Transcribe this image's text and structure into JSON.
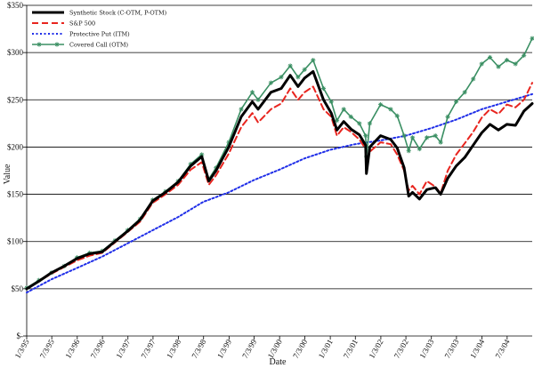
{
  "chart_data": {
    "type": "line",
    "title": "",
    "xlabel": "Date",
    "ylabel": "Value",
    "ylim": [
      0,
      350
    ],
    "y_ticks": [
      0,
      50,
      100,
      150,
      200,
      250,
      300,
      350
    ],
    "y_tick_labels": [
      "$-",
      "$50",
      "$100",
      "$150",
      "$200",
      "$250",
      "$300",
      "$350"
    ],
    "x_range": [
      "1995-01-03",
      "2004-12-31"
    ],
    "x_tick_labels": [
      "1/3/95",
      "7/3/95",
      "1/3/96",
      "7/3/96",
      "1/3/97",
      "7/3/97",
      "1/3/98",
      "7/3/98",
      "1/3/99",
      "7/3/99",
      "1/3/00",
      "7/3/00",
      "1/3/01",
      "7/3/01",
      "1/3/02",
      "7/3/02",
      "1/3/03",
      "7/3/03",
      "1/3/04",
      "7/3/04"
    ],
    "x_tick_dates": [
      "1995-01-03",
      "1995-07-03",
      "1996-01-03",
      "1996-07-03",
      "1997-01-03",
      "1997-07-03",
      "1998-01-03",
      "1998-07-03",
      "1999-01-03",
      "1999-07-03",
      "2000-01-03",
      "2000-07-03",
      "2001-01-03",
      "2001-07-03",
      "2002-01-03",
      "2002-07-03",
      "2003-01-03",
      "2003-07-03",
      "2004-01-03",
      "2004-07-03"
    ],
    "grid": "horizontal",
    "legend_placement": "top-left",
    "series": [
      {
        "name": "Synthetic Stock (C-OTM, P-OTM)",
        "color": "#000000",
        "style": "solid-thick",
        "points": [
          [
            "1995-01-03",
            50
          ],
          [
            "1995-04-01",
            58
          ],
          [
            "1995-07-01",
            67
          ],
          [
            "1995-10-01",
            74
          ],
          [
            "1996-01-01",
            82
          ],
          [
            "1996-04-01",
            87
          ],
          [
            "1996-07-01",
            89
          ],
          [
            "1996-10-01",
            100
          ],
          [
            "1997-01-01",
            111
          ],
          [
            "1997-04-01",
            123
          ],
          [
            "1997-07-01",
            143
          ],
          [
            "1997-10-01",
            152
          ],
          [
            "1998-01-01",
            163
          ],
          [
            "1998-04-01",
            180
          ],
          [
            "1998-06-20",
            190
          ],
          [
            "1998-08-10",
            164
          ],
          [
            "1998-10-01",
            175
          ],
          [
            "1999-01-01",
            200
          ],
          [
            "1999-04-01",
            232
          ],
          [
            "1999-06-20",
            248
          ],
          [
            "1999-08-01",
            240
          ],
          [
            "1999-11-01",
            258
          ],
          [
            "2000-01-15",
            262
          ],
          [
            "2000-03-20",
            276
          ],
          [
            "2000-05-15",
            264
          ],
          [
            "2000-07-01",
            273
          ],
          [
            "2000-09-01",
            280
          ],
          [
            "2000-11-15",
            250
          ],
          [
            "2001-01-10",
            236
          ],
          [
            "2001-02-20",
            218
          ],
          [
            "2001-04-10",
            227
          ],
          [
            "2001-06-01",
            219
          ],
          [
            "2001-08-01",
            213
          ],
          [
            "2001-09-15",
            202
          ],
          [
            "2001-09-21",
            172
          ],
          [
            "2001-10-15",
            200
          ],
          [
            "2002-01-01",
            212
          ],
          [
            "2002-03-15",
            208
          ],
          [
            "2002-05-01",
            199
          ],
          [
            "2002-06-20",
            178
          ],
          [
            "2002-07-23",
            148
          ],
          [
            "2002-08-20",
            152
          ],
          [
            "2002-10-09",
            145
          ],
          [
            "2002-12-01",
            155
          ],
          [
            "2003-02-01",
            157
          ],
          [
            "2003-03-11",
            150
          ],
          [
            "2003-05-01",
            167
          ],
          [
            "2003-07-01",
            180
          ],
          [
            "2003-09-01",
            189
          ],
          [
            "2003-11-01",
            202
          ],
          [
            "2004-01-01",
            215
          ],
          [
            "2004-03-01",
            224
          ],
          [
            "2004-05-01",
            218
          ],
          [
            "2004-07-01",
            224
          ],
          [
            "2004-09-01",
            223
          ],
          [
            "2004-11-01",
            238
          ],
          [
            "2004-12-31",
            246
          ]
        ]
      },
      {
        "name": "S&P 500",
        "color": "#e8251f",
        "style": "dashed",
        "points": [
          [
            "1995-01-03",
            50
          ],
          [
            "1995-04-01",
            58
          ],
          [
            "1995-07-01",
            66
          ],
          [
            "1995-10-01",
            73
          ],
          [
            "1996-01-01",
            80
          ],
          [
            "1996-04-01",
            85
          ],
          [
            "1996-07-01",
            88
          ],
          [
            "1996-10-01",
            99
          ],
          [
            "1997-01-01",
            110
          ],
          [
            "1997-04-01",
            121
          ],
          [
            "1997-07-01",
            141
          ],
          [
            "1997-10-01",
            150
          ],
          [
            "1998-01-01",
            160
          ],
          [
            "1998-04-01",
            176
          ],
          [
            "1998-06-20",
            184
          ],
          [
            "1998-08-10",
            160
          ],
          [
            "1998-10-01",
            170
          ],
          [
            "1999-01-01",
            193
          ],
          [
            "1999-04-01",
            221
          ],
          [
            "1999-06-20",
            236
          ],
          [
            "1999-08-01",
            226
          ],
          [
            "1999-11-01",
            240
          ],
          [
            "2000-01-15",
            246
          ],
          [
            "2000-03-20",
            262
          ],
          [
            "2000-05-15",
            250
          ],
          [
            "2000-07-01",
            258
          ],
          [
            "2000-09-01",
            264
          ],
          [
            "2000-11-15",
            240
          ],
          [
            "2001-01-10",
            232
          ],
          [
            "2001-02-20",
            212
          ],
          [
            "2001-04-10",
            221
          ],
          [
            "2001-06-01",
            216
          ],
          [
            "2001-08-01",
            208
          ],
          [
            "2001-09-15",
            198
          ],
          [
            "2001-09-21",
            182
          ],
          [
            "2001-10-15",
            195
          ],
          [
            "2002-01-01",
            205
          ],
          [
            "2002-03-15",
            203
          ],
          [
            "2002-05-01",
            192
          ],
          [
            "2002-06-20",
            175
          ],
          [
            "2002-07-23",
            154
          ],
          [
            "2002-08-20",
            159
          ],
          [
            "2002-10-09",
            150
          ],
          [
            "2002-12-01",
            164
          ],
          [
            "2003-02-01",
            158
          ],
          [
            "2003-03-11",
            151
          ],
          [
            "2003-05-01",
            175
          ],
          [
            "2003-07-01",
            192
          ],
          [
            "2003-09-01",
            204
          ],
          [
            "2003-11-01",
            216
          ],
          [
            "2004-01-01",
            231
          ],
          [
            "2004-03-01",
            240
          ],
          [
            "2004-05-01",
            235
          ],
          [
            "2004-07-01",
            245
          ],
          [
            "2004-09-01",
            242
          ],
          [
            "2004-11-01",
            250
          ],
          [
            "2004-12-31",
            268
          ]
        ]
      },
      {
        "name": "Protective Put (ITM)",
        "color": "#1f2ee8",
        "style": "dotted",
        "points": [
          [
            "1995-01-03",
            46
          ],
          [
            "1995-07-01",
            60
          ],
          [
            "1996-01-01",
            72
          ],
          [
            "1996-07-01",
            84
          ],
          [
            "1997-01-01",
            98
          ],
          [
            "1997-07-01",
            112
          ],
          [
            "1998-01-01",
            126
          ],
          [
            "1998-07-01",
            142
          ],
          [
            "1999-01-01",
            152
          ],
          [
            "1999-07-01",
            165
          ],
          [
            "2000-01-01",
            176
          ],
          [
            "2000-07-01",
            188
          ],
          [
            "2001-01-01",
            197
          ],
          [
            "2001-07-01",
            203
          ],
          [
            "2002-01-01",
            207
          ],
          [
            "2002-07-01",
            212
          ],
          [
            "2003-01-01",
            220
          ],
          [
            "2003-07-01",
            229
          ],
          [
            "2004-01-01",
            240
          ],
          [
            "2004-07-01",
            248
          ],
          [
            "2004-12-31",
            256
          ]
        ]
      },
      {
        "name": "Covered Call (OTM)",
        "color": "#3a8f63",
        "style": "solid-star",
        "points": [
          [
            "1995-01-03",
            51
          ],
          [
            "1995-04-01",
            59
          ],
          [
            "1995-07-01",
            67
          ],
          [
            "1995-10-01",
            74
          ],
          [
            "1996-01-01",
            83
          ],
          [
            "1996-04-01",
            88
          ],
          [
            "1996-07-01",
            90
          ],
          [
            "1996-10-01",
            101
          ],
          [
            "1997-01-01",
            112
          ],
          [
            "1997-04-01",
            124
          ],
          [
            "1997-07-01",
            144
          ],
          [
            "1997-10-01",
            153
          ],
          [
            "1998-01-01",
            164
          ],
          [
            "1998-04-01",
            182
          ],
          [
            "1998-06-20",
            192
          ],
          [
            "1998-08-10",
            166
          ],
          [
            "1998-10-01",
            178
          ],
          [
            "1999-01-01",
            205
          ],
          [
            "1999-04-01",
            240
          ],
          [
            "1999-06-20",
            258
          ],
          [
            "1999-08-01",
            250
          ],
          [
            "1999-11-01",
            268
          ],
          [
            "2000-01-15",
            274
          ],
          [
            "2000-03-20",
            286
          ],
          [
            "2000-05-15",
            274
          ],
          [
            "2000-07-01",
            282
          ],
          [
            "2000-09-01",
            292
          ],
          [
            "2000-11-15",
            262
          ],
          [
            "2001-01-10",
            248
          ],
          [
            "2001-02-20",
            228
          ],
          [
            "2001-04-10",
            240
          ],
          [
            "2001-06-01",
            232
          ],
          [
            "2001-08-01",
            225
          ],
          [
            "2001-09-15",
            212
          ],
          [
            "2001-09-21",
            190
          ],
          [
            "2001-10-15",
            225
          ],
          [
            "2002-01-01",
            245
          ],
          [
            "2002-03-15",
            240
          ],
          [
            "2002-05-01",
            233
          ],
          [
            "2002-06-20",
            212
          ],
          [
            "2002-07-23",
            196
          ],
          [
            "2002-08-20",
            210
          ],
          [
            "2002-10-09",
            198
          ],
          [
            "2002-12-01",
            210
          ],
          [
            "2003-02-01",
            212
          ],
          [
            "2003-03-11",
            205
          ],
          [
            "2003-05-01",
            232
          ],
          [
            "2003-07-01",
            248
          ],
          [
            "2003-09-01",
            258
          ],
          [
            "2003-11-01",
            272
          ],
          [
            "2004-01-01",
            288
          ],
          [
            "2004-03-01",
            295
          ],
          [
            "2004-05-01",
            285
          ],
          [
            "2004-07-01",
            292
          ],
          [
            "2004-09-01",
            288
          ],
          [
            "2004-11-01",
            297
          ],
          [
            "2004-12-31",
            315
          ]
        ]
      }
    ]
  }
}
